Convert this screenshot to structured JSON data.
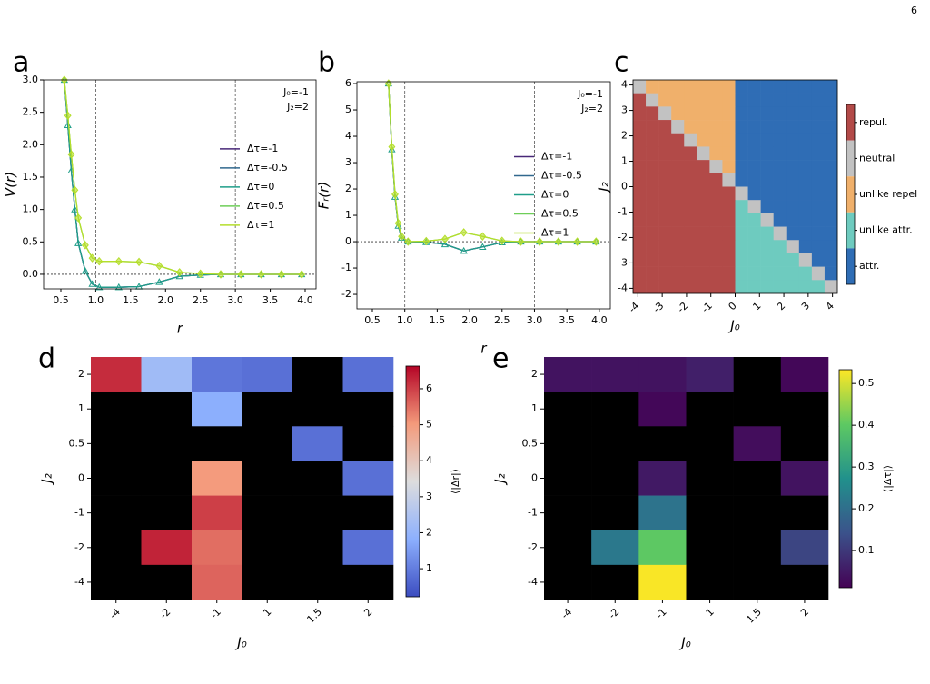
{
  "page_number": "6",
  "chart_data": [
    {
      "type": "line",
      "panel": "a",
      "x_label": "r",
      "y_label": "V(r)",
      "annotations": [
        "J₀=-1",
        "J₂=2"
      ],
      "x": [
        0.55,
        0.6,
        0.65,
        0.7,
        0.75,
        0.85,
        0.95,
        1.05,
        1.33,
        1.62,
        1.91,
        2.2,
        2.5,
        2.79,
        3.08,
        3.37,
        3.66,
        3.95
      ],
      "series": [
        {
          "name": "Δτ=-1",
          "color": "#482878",
          "values": [
            3.0,
            2.3,
            1.6,
            1.0,
            0.48,
            0.05,
            -0.15,
            -0.2,
            -0.2,
            -0.19,
            -0.12,
            -0.03,
            -0.01,
            0,
            0,
            0,
            0,
            0
          ]
        },
        {
          "name": "Δτ=-0.5",
          "color": "#31688e",
          "values": [
            3.0,
            2.3,
            1.6,
            1.0,
            0.48,
            0.05,
            -0.15,
            -0.2,
            -0.2,
            -0.19,
            -0.12,
            -0.03,
            -0.01,
            0,
            0,
            0,
            0,
            0
          ]
        },
        {
          "name": "Δτ=0",
          "color": "#1f9e89",
          "marker": "triangle",
          "values": [
            3.0,
            2.3,
            1.6,
            1.0,
            0.48,
            0.05,
            -0.15,
            -0.2,
            -0.2,
            -0.19,
            -0.12,
            -0.03,
            -0.01,
            0,
            0,
            0,
            0,
            0
          ]
        },
        {
          "name": "Δτ=0.5",
          "color": "#6ece58",
          "values": [
            3.0,
            2.45,
            1.85,
            1.3,
            0.87,
            0.45,
            0.25,
            0.2,
            0.2,
            0.19,
            0.13,
            0.03,
            0.01,
            0,
            0,
            0,
            0,
            0
          ]
        },
        {
          "name": "Δτ=1",
          "color": "#b5de2b",
          "marker": "diamond",
          "values": [
            3.0,
            2.45,
            1.85,
            1.3,
            0.87,
            0.45,
            0.25,
            0.2,
            0.2,
            0.19,
            0.13,
            0.03,
            0.01,
            0,
            0,
            0,
            0,
            0
          ]
        }
      ],
      "xlim": [
        0.253,
        4.156
      ],
      "ylim": [
        -0.225,
        3.0
      ],
      "xticks": [
        {
          "value": 0.5,
          "label": "0.5"
        },
        {
          "value": 1,
          "label": "1.0"
        },
        {
          "value": 1.5,
          "label": "1.5"
        },
        {
          "value": 2,
          "label": "2.0"
        },
        {
          "value": 2.5,
          "label": "2.5"
        },
        {
          "value": 3,
          "label": "3.0"
        },
        {
          "value": 3.5,
          "label": "3.5"
        },
        {
          "value": 4,
          "label": "4.0"
        }
      ],
      "yticks": [
        {
          "value": 0,
          "label": "0.0"
        },
        {
          "value": 0.5,
          "label": "0.5"
        },
        {
          "value": 1,
          "label": "1.0"
        },
        {
          "value": 1.5,
          "label": "1.5"
        },
        {
          "value": 2,
          "label": "2.0"
        },
        {
          "value": 2.5,
          "label": "2.5"
        },
        {
          "value": 3,
          "label": "3.0"
        }
      ],
      "reference_lines": {
        "x": [
          1,
          3
        ],
        "y": [
          0
        ]
      },
      "legend": "center right"
    },
    {
      "type": "line",
      "panel": "b",
      "x_label": "r",
      "y_label": "Fᵣ(r)",
      "annotations": [
        "J₀=-1",
        "J₂=2"
      ],
      "x": [
        0.75,
        0.8,
        0.85,
        0.9,
        0.95,
        1.05,
        1.33,
        1.62,
        1.91,
        2.2,
        2.5,
        2.79,
        3.08,
        3.37,
        3.66,
        3.95
      ],
      "series": [
        {
          "name": "Δτ=-1",
          "color": "#482878",
          "values": [
            6.0,
            3.5,
            1.7,
            0.6,
            0.15,
            0.0,
            -0.02,
            -0.1,
            -0.35,
            -0.2,
            -0.03,
            0,
            0,
            0,
            0,
            0
          ]
        },
        {
          "name": "Δτ=-0.5",
          "color": "#31688e",
          "values": [
            6.0,
            3.5,
            1.7,
            0.6,
            0.15,
            0.0,
            -0.02,
            -0.1,
            -0.35,
            -0.2,
            -0.03,
            0,
            0,
            0,
            0,
            0
          ]
        },
        {
          "name": "Δτ=0",
          "color": "#1f9e89",
          "marker": "triangle",
          "values": [
            6.0,
            3.5,
            1.7,
            0.6,
            0.15,
            0.0,
            -0.02,
            -0.1,
            -0.35,
            -0.2,
            -0.03,
            0,
            0,
            0,
            0,
            0
          ]
        },
        {
          "name": "Δτ=0.5",
          "color": "#6ece58",
          "values": [
            6.0,
            3.6,
            1.8,
            0.7,
            0.2,
            0.0,
            0.02,
            0.1,
            0.35,
            0.2,
            0.03,
            0,
            0,
            0,
            0,
            0
          ]
        },
        {
          "name": "Δτ=1",
          "color": "#b5de2b",
          "marker": "diamond",
          "values": [
            6.0,
            3.6,
            1.8,
            0.7,
            0.2,
            0.0,
            0.02,
            0.1,
            0.35,
            0.2,
            0.03,
            0,
            0,
            0,
            0,
            0
          ]
        }
      ],
      "xlim": [
        0.262,
        4.17
      ],
      "ylim": [
        -2.55,
        6.07
      ],
      "xticks": [
        {
          "value": 0.5,
          "label": "0.5"
        },
        {
          "value": 1,
          "label": "1.0"
        },
        {
          "value": 1.5,
          "label": "1.5"
        },
        {
          "value": 2,
          "label": "2.0"
        },
        {
          "value": 2.5,
          "label": "2.5"
        },
        {
          "value": 3,
          "label": "3.0"
        },
        {
          "value": 3.5,
          "label": "3.5"
        },
        {
          "value": 4,
          "label": "4.0"
        }
      ],
      "yticks": [
        -2,
        -1,
        0,
        1,
        2,
        3,
        4,
        5,
        6
      ],
      "reference_lines": {
        "x": [
          1,
          3
        ],
        "y": [
          0
        ]
      },
      "legend": "center right"
    },
    {
      "type": "categorical_heatmap",
      "panel": "c",
      "x_label": "J₀",
      "y_label": "J₂",
      "xlim": [
        -4.2,
        4.2
      ],
      "ylim": [
        -4.2,
        4.2
      ],
      "xticks": [
        -4,
        -3,
        -2,
        -1,
        0,
        1,
        2,
        3,
        4
      ],
      "yticks": [
        -4,
        -3,
        -2,
        -1,
        0,
        1,
        2,
        3,
        4
      ],
      "legend": [
        {
          "name": "repul.",
          "color": "#b24a48"
        },
        {
          "name": "neutral",
          "color": "#c2c2c2"
        },
        {
          "name": "unlike repel",
          "color": "#f0b06b"
        },
        {
          "name": "unlike attr.",
          "color": "#6ecbbf"
        },
        {
          "name": "attr.",
          "color": "#2f6db5"
        }
      ],
      "cells": [
        [
          1,
          2,
          2,
          2,
          2,
          2,
          2,
          2,
          4,
          4,
          4,
          4,
          4,
          4,
          4,
          4
        ],
        [
          0,
          1,
          2,
          2,
          2,
          2,
          2,
          2,
          4,
          4,
          4,
          4,
          4,
          4,
          4,
          4
        ],
        [
          0,
          0,
          1,
          2,
          2,
          2,
          2,
          2,
          4,
          4,
          4,
          4,
          4,
          4,
          4,
          4
        ],
        [
          0,
          0,
          0,
          1,
          2,
          2,
          2,
          2,
          4,
          4,
          4,
          4,
          4,
          4,
          4,
          4
        ],
        [
          0,
          0,
          0,
          0,
          1,
          2,
          2,
          2,
          4,
          4,
          4,
          4,
          4,
          4,
          4,
          4
        ],
        [
          0,
          0,
          0,
          0,
          0,
          1,
          2,
          2,
          4,
          4,
          4,
          4,
          4,
          4,
          4,
          4
        ],
        [
          0,
          0,
          0,
          0,
          0,
          0,
          1,
          2,
          4,
          4,
          4,
          4,
          4,
          4,
          4,
          4
        ],
        [
          0,
          0,
          0,
          0,
          0,
          0,
          0,
          1,
          4,
          4,
          4,
          4,
          4,
          4,
          4,
          4
        ],
        [
          0,
          0,
          0,
          0,
          0,
          0,
          0,
          0,
          1,
          4,
          4,
          4,
          4,
          4,
          4,
          4
        ],
        [
          0,
          0,
          0,
          0,
          0,
          0,
          0,
          0,
          3,
          1,
          4,
          4,
          4,
          4,
          4,
          4
        ],
        [
          0,
          0,
          0,
          0,
          0,
          0,
          0,
          0,
          3,
          3,
          1,
          4,
          4,
          4,
          4,
          4
        ],
        [
          0,
          0,
          0,
          0,
          0,
          0,
          0,
          0,
          3,
          3,
          3,
          1,
          4,
          4,
          4,
          4
        ],
        [
          0,
          0,
          0,
          0,
          0,
          0,
          0,
          0,
          3,
          3,
          3,
          3,
          1,
          4,
          4,
          4
        ],
        [
          0,
          0,
          0,
          0,
          0,
          0,
          0,
          0,
          3,
          3,
          3,
          3,
          3,
          1,
          4,
          4
        ],
        [
          0,
          0,
          0,
          0,
          0,
          0,
          0,
          0,
          3,
          3,
          3,
          3,
          3,
          3,
          1,
          4
        ],
        [
          0,
          0,
          0,
          0,
          0,
          0,
          0,
          0,
          3,
          3,
          3,
          3,
          3,
          3,
          3,
          1
        ]
      ]
    },
    {
      "type": "heatmap",
      "panel": "d",
      "x_label": "J₀",
      "y_label": "J₂",
      "colorbar_label": "⟨|Δr|⟩",
      "x_categories": [
        "-4",
        "-2",
        "-1",
        "1",
        "1.5",
        "2"
      ],
      "y_categories": [
        "2",
        "1",
        "0.5",
        "0",
        "-1",
        "-2",
        "-4"
      ],
      "values": [
        [
          6.2,
          2.2,
          0.9,
          0.8,
          null,
          0.8
        ],
        [
          null,
          null,
          1.8,
          null,
          null,
          null
        ],
        [
          null,
          null,
          null,
          null,
          0.8,
          null
        ],
        [
          null,
          null,
          5.0,
          null,
          null,
          0.8
        ],
        [
          null,
          null,
          6.0,
          null,
          null,
          null
        ],
        [
          null,
          6.3,
          5.5,
          null,
          null,
          0.8
        ],
        [
          null,
          null,
          5.6,
          null,
          null,
          null
        ]
      ],
      "missing_color": "#000000",
      "colormap": [
        "#3b4cc0",
        "#8db0fe",
        "#dddddd",
        "#f49a7b",
        "#b40426"
      ],
      "clim": [
        0.22,
        6.63
      ],
      "cticks": [
        1,
        2,
        3,
        4,
        5,
        6
      ]
    },
    {
      "type": "heatmap",
      "panel": "e",
      "x_label": "J₀",
      "y_label": "J₂",
      "colorbar_label": "⟨|Δτ|⟩",
      "x_categories": [
        "-4",
        "-2",
        "-1",
        "1",
        "1.5",
        "2"
      ],
      "y_categories": [
        "2",
        "1",
        "0.5",
        "0",
        "-1",
        "-2",
        "-4"
      ],
      "values": [
        [
          0.04,
          0.04,
          0.04,
          0.06,
          null,
          0.02
        ],
        [
          null,
          null,
          0.02,
          null,
          null,
          null
        ],
        [
          null,
          null,
          null,
          null,
          0.03,
          null
        ],
        [
          null,
          null,
          0.05,
          null,
          null,
          0.04
        ],
        [
          null,
          null,
          0.21,
          null,
          null,
          null
        ],
        [
          null,
          0.22,
          0.4,
          null,
          null,
          0.12
        ],
        [
          null,
          null,
          0.53,
          null,
          null,
          null
        ]
      ],
      "missing_color": "#000000",
      "colormap": [
        "#440154",
        "#3b528b",
        "#21918c",
        "#5ec962",
        "#fde725"
      ],
      "clim": [
        0.011,
        0.533
      ],
      "cticks": [
        0.1,
        0.2,
        0.3,
        0.4,
        0.5
      ]
    }
  ]
}
